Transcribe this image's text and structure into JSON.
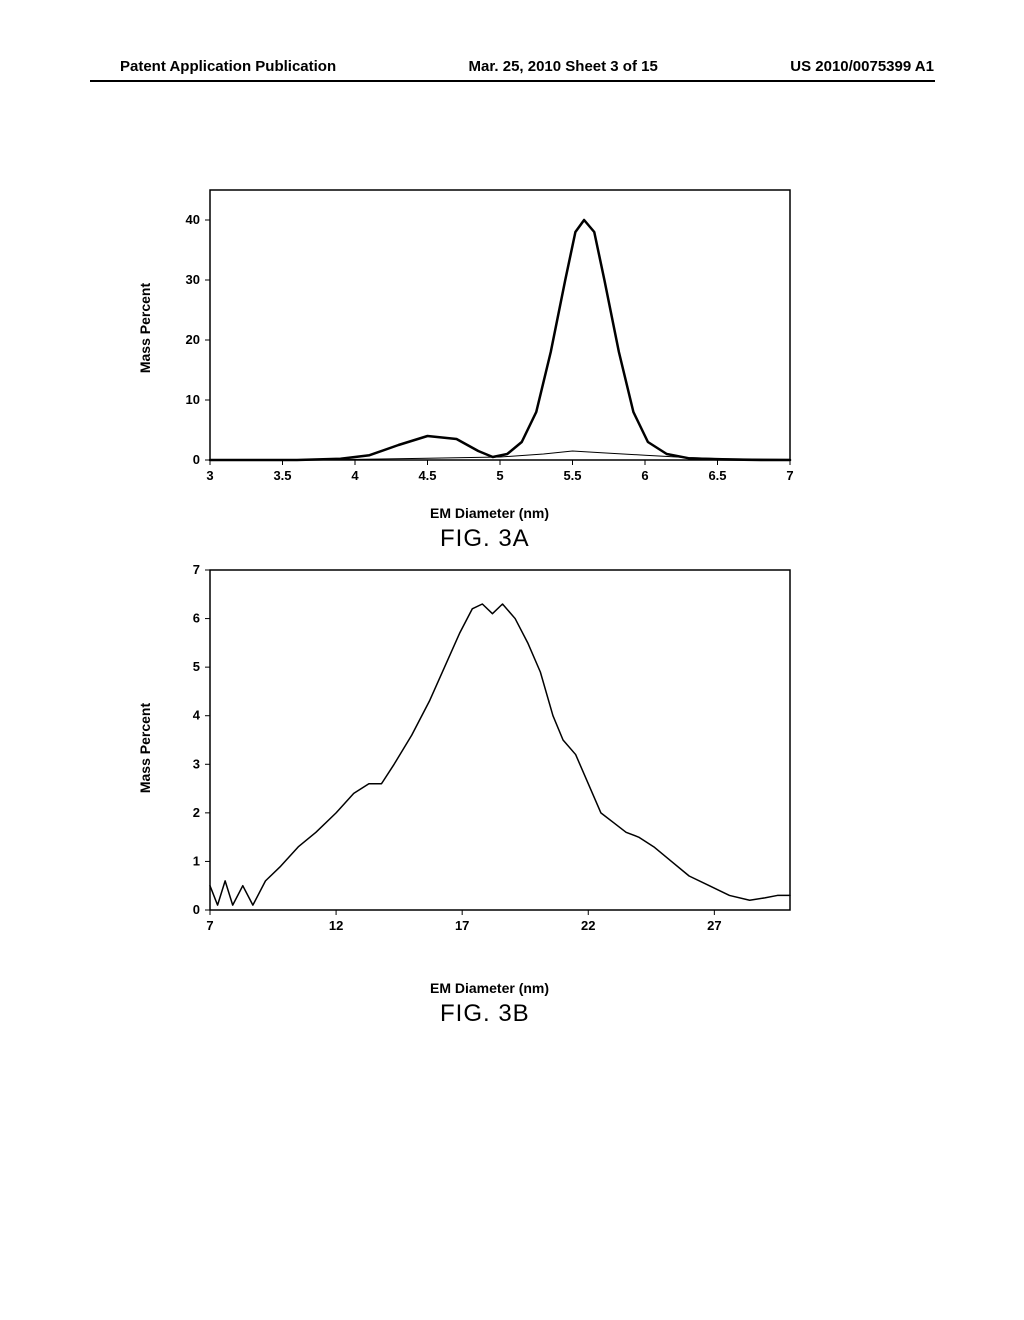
{
  "header": {
    "left": "Patent Application Publication",
    "center": "Mar. 25, 2010  Sheet 3 of 15",
    "right": "US 2010/0075399 A1"
  },
  "chart_a": {
    "type": "line",
    "title": "FIG. 3A",
    "title_fontsize": 24,
    "xlabel": "EM Diameter (nm)",
    "ylabel": "Mass Percent",
    "label_fontsize": 14,
    "xlim": [
      3,
      7
    ],
    "ylim": [
      0,
      45
    ],
    "xtick_step": 0.5,
    "xticks": [
      3,
      3.5,
      4,
      4.5,
      5,
      5.5,
      6,
      6.5,
      7
    ],
    "yticks": [
      0,
      10,
      20,
      30,
      40
    ],
    "line_color": "#000000",
    "line_width": 2.5,
    "background_color": "#ffffff",
    "border_color": "#000000",
    "series": [
      {
        "name": "main",
        "points": [
          [
            3.0,
            0
          ],
          [
            3.3,
            0
          ],
          [
            3.6,
            0
          ],
          [
            3.9,
            0.2
          ],
          [
            4.1,
            0.8
          ],
          [
            4.3,
            2.5
          ],
          [
            4.5,
            4
          ],
          [
            4.7,
            3.5
          ],
          [
            4.85,
            1.5
          ],
          [
            4.95,
            0.5
          ],
          [
            5.05,
            1
          ],
          [
            5.15,
            3
          ],
          [
            5.25,
            8
          ],
          [
            5.35,
            18
          ],
          [
            5.45,
            30
          ],
          [
            5.52,
            38
          ],
          [
            5.58,
            40
          ],
          [
            5.65,
            38
          ],
          [
            5.72,
            30
          ],
          [
            5.82,
            18
          ],
          [
            5.92,
            8
          ],
          [
            6.02,
            3
          ],
          [
            6.15,
            1
          ],
          [
            6.3,
            0.3
          ],
          [
            6.5,
            0.1
          ],
          [
            6.8,
            0
          ],
          [
            7.0,
            0
          ]
        ]
      },
      {
        "name": "secondary",
        "line_width": 1,
        "points": [
          [
            3.0,
            0
          ],
          [
            4.0,
            0.1
          ],
          [
            4.5,
            0.3
          ],
          [
            5.0,
            0.5
          ],
          [
            5.3,
            1.0
          ],
          [
            5.5,
            1.5
          ],
          [
            5.7,
            1.2
          ],
          [
            6.0,
            0.8
          ],
          [
            6.3,
            0.4
          ],
          [
            6.6,
            0.2
          ],
          [
            7.0,
            0.1
          ]
        ]
      }
    ]
  },
  "chart_b": {
    "type": "line",
    "title": "FIG. 3B",
    "title_fontsize": 24,
    "xlabel": "EM Diameter (nm)",
    "ylabel": "Mass Percent",
    "label_fontsize": 14,
    "xlim": [
      7,
      30
    ],
    "ylim": [
      0,
      7
    ],
    "xticks": [
      7,
      12,
      17,
      22,
      27
    ],
    "yticks": [
      0,
      1,
      2,
      3,
      4,
      5,
      6,
      7
    ],
    "line_color": "#000000",
    "line_width": 1.5,
    "background_color": "#ffffff",
    "border_color": "#000000",
    "series": [
      {
        "name": "main",
        "points": [
          [
            7.0,
            0.5
          ],
          [
            7.3,
            0.1
          ],
          [
            7.6,
            0.6
          ],
          [
            7.9,
            0.1
          ],
          [
            8.3,
            0.5
          ],
          [
            8.7,
            0.1
          ],
          [
            9.2,
            0.6
          ],
          [
            9.8,
            0.9
          ],
          [
            10.5,
            1.3
          ],
          [
            11.2,
            1.6
          ],
          [
            12.0,
            2.0
          ],
          [
            12.7,
            2.4
          ],
          [
            13.3,
            2.6
          ],
          [
            13.8,
            2.6
          ],
          [
            14.3,
            3.0
          ],
          [
            15.0,
            3.6
          ],
          [
            15.7,
            4.3
          ],
          [
            16.3,
            5.0
          ],
          [
            16.9,
            5.7
          ],
          [
            17.4,
            6.2
          ],
          [
            17.8,
            6.3
          ],
          [
            18.2,
            6.1
          ],
          [
            18.6,
            6.3
          ],
          [
            19.1,
            6.0
          ],
          [
            19.6,
            5.5
          ],
          [
            20.1,
            4.9
          ],
          [
            20.6,
            4.0
          ],
          [
            21.0,
            3.5
          ],
          [
            21.5,
            3.2
          ],
          [
            22.0,
            2.6
          ],
          [
            22.5,
            2.0
          ],
          [
            23.0,
            1.8
          ],
          [
            23.5,
            1.6
          ],
          [
            24.0,
            1.5
          ],
          [
            24.6,
            1.3
          ],
          [
            25.3,
            1.0
          ],
          [
            26.0,
            0.7
          ],
          [
            26.8,
            0.5
          ],
          [
            27.6,
            0.3
          ],
          [
            28.4,
            0.2
          ],
          [
            29.0,
            0.25
          ],
          [
            29.5,
            0.3
          ],
          [
            30.0,
            0.3
          ]
        ]
      }
    ]
  }
}
